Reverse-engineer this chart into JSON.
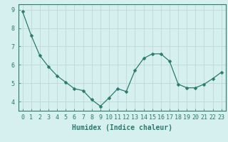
{
  "x": [
    0,
    1,
    2,
    3,
    4,
    5,
    6,
    7,
    8,
    9,
    10,
    11,
    12,
    13,
    14,
    15,
    16,
    17,
    18,
    19,
    20,
    21,
    22,
    23
  ],
  "y": [
    8.9,
    7.6,
    6.5,
    5.9,
    5.4,
    5.05,
    4.7,
    4.6,
    4.1,
    3.75,
    4.2,
    4.7,
    4.55,
    5.7,
    6.35,
    6.6,
    6.6,
    6.2,
    4.95,
    4.75,
    4.75,
    4.95,
    5.25,
    5.6
  ],
  "line_color": "#2a7a6e",
  "marker": "D",
  "marker_size": 2.5,
  "bg_color": "#d6f0ef",
  "grid_color": "#c0d8d6",
  "xlabel": "Humidex (Indice chaleur)",
  "xlim": [
    -0.5,
    23.5
  ],
  "ylim": [
    3.5,
    9.3
  ],
  "yticks": [
    4,
    5,
    6,
    7,
    8,
    9
  ],
  "xticks": [
    0,
    1,
    2,
    3,
    4,
    5,
    6,
    7,
    8,
    9,
    10,
    11,
    12,
    13,
    14,
    15,
    16,
    17,
    18,
    19,
    20,
    21,
    22,
    23
  ],
  "tick_color": "#2a7a6e",
  "label_color": "#2a7a6e",
  "font_size_xlabel": 7.0,
  "font_size_ticks": 6.0
}
